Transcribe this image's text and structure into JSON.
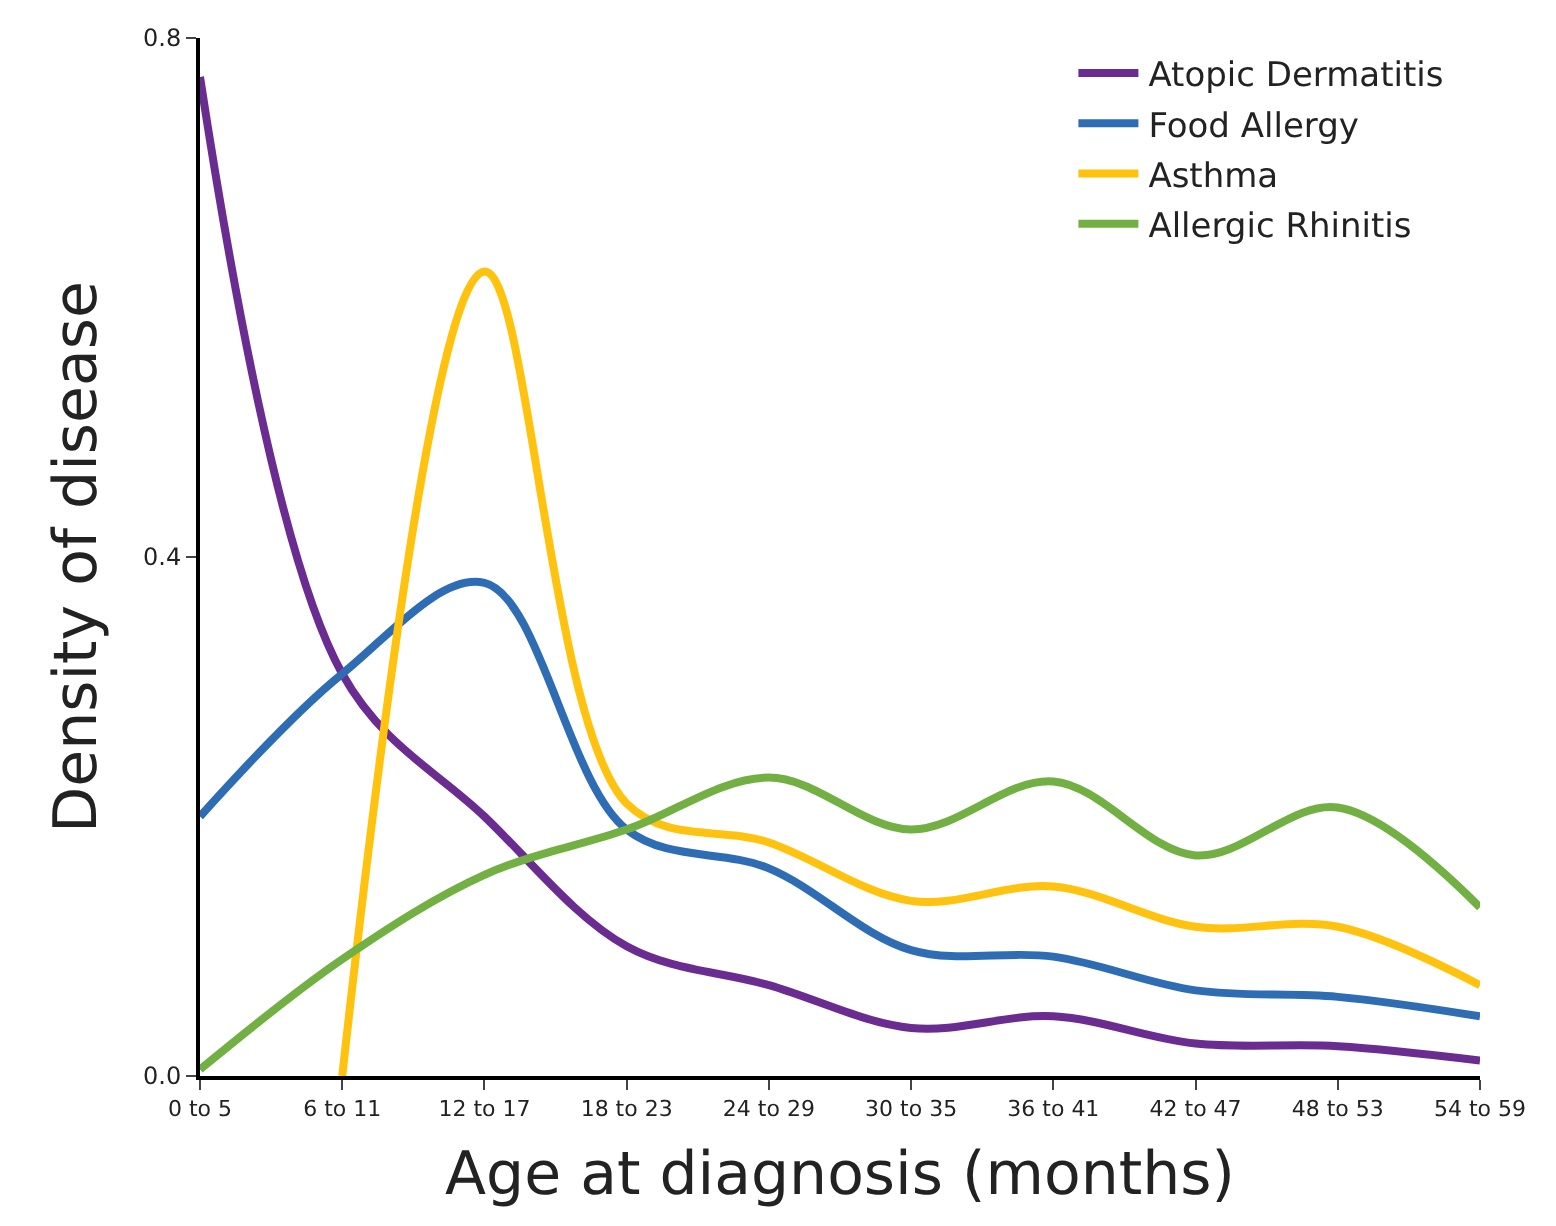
{
  "chart_data": {
    "type": "line",
    "xlabel": "Age at diagnosis (months)",
    "ylabel": "Density of disease",
    "categories": [
      "0 to 5",
      "6 to 11",
      "12 to 17",
      "18 to 23",
      "24 to 29",
      "30 to 35",
      "36 to 41",
      "42 to 47",
      "48 to 53",
      "54 to 59"
    ],
    "series": [
      {
        "name": "Atopic Dermatitis",
        "color": "#6a2c91",
        "values": [
          0.77,
          0.31,
          0.2,
          0.1,
          0.07,
          0.037,
          0.046,
          0.025,
          0.023,
          0.012
        ]
      },
      {
        "name": "Food Allergy",
        "color": "#2e6db4",
        "values": [
          0.2,
          0.31,
          0.38,
          0.19,
          0.16,
          0.097,
          0.092,
          0.066,
          0.061,
          0.046
        ]
      },
      {
        "name": "Asthma",
        "color": "#ffc20e",
        "values": [
          null,
          0.0,
          0.62,
          0.21,
          0.18,
          0.135,
          0.146,
          0.115,
          0.115,
          0.07
        ]
      },
      {
        "name": "Allergic Rhinitis",
        "color": "#72b043",
        "values": [
          0.005,
          0.09,
          0.155,
          0.19,
          0.23,
          0.19,
          0.227,
          0.17,
          0.207,
          0.13
        ]
      }
    ],
    "ylim": [
      0,
      0.8
    ],
    "yticks": [
      {
        "value": 0,
        "label": "0.0"
      },
      0.4,
      0.8
    ],
    "grid": false,
    "legend": "top right",
    "marker": "none",
    "line_style": "solid"
  }
}
